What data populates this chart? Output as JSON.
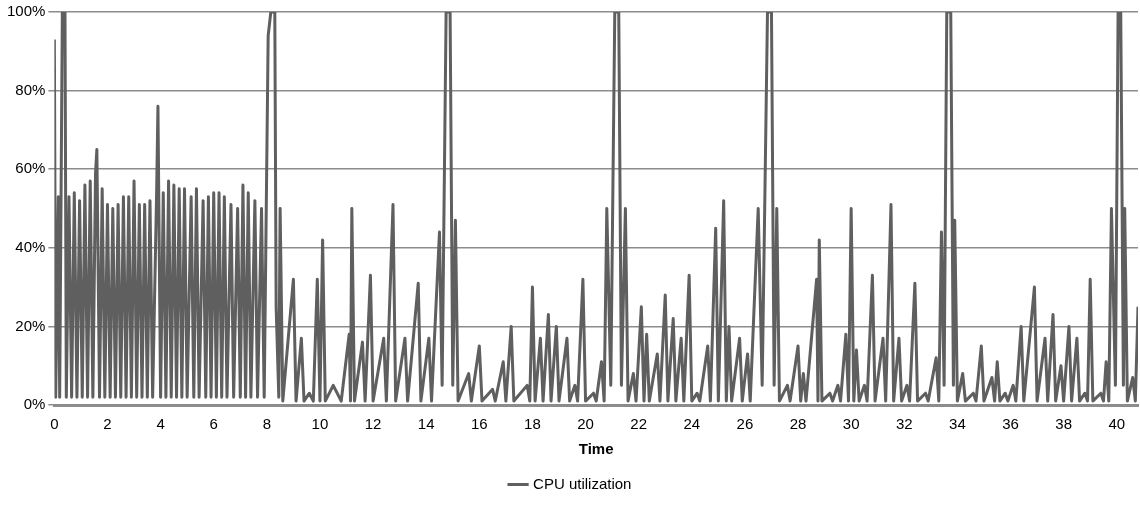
{
  "chart_data": {
    "type": "line",
    "xlabel": "Time",
    "xlim": [
      0,
      40.8
    ],
    "xticks": [
      0,
      2,
      4,
      6,
      8,
      10,
      12,
      14,
      16,
      18,
      20,
      22,
      24,
      26,
      28,
      30,
      32,
      34,
      36,
      38,
      40
    ],
    "ylim": [
      0,
      100
    ],
    "yticks": [
      {
        "value": 0,
        "label": "0%"
      },
      {
        "value": 20,
        "label": "20%"
      },
      {
        "value": 40,
        "label": "40%"
      },
      {
        "value": 60,
        "label": "60%"
      },
      {
        "value": 80,
        "label": "80%"
      },
      {
        "value": 100,
        "label": "100%"
      }
    ],
    "grid": "y",
    "legend": "bottom",
    "marker": "none",
    "line_style": "solid",
    "series": [
      {
        "name": "CPU utilization",
        "color": "#5f5f5f",
        "x": [
          0.0,
          0.05,
          0.15,
          0.2,
          0.3,
          0.4,
          0.45,
          0.55,
          0.65,
          0.75,
          0.85,
          0.95,
          1.05,
          1.15,
          1.25,
          1.35,
          1.45,
          1.55,
          1.6,
          1.7,
          1.8,
          1.9,
          2.0,
          2.1,
          2.2,
          2.3,
          2.4,
          2.5,
          2.6,
          2.7,
          2.8,
          2.9,
          3.0,
          3.1,
          3.2,
          3.3,
          3.4,
          3.5,
          3.6,
          3.7,
          3.85,
          3.9,
          4.0,
          4.1,
          4.2,
          4.3,
          4.4,
          4.5,
          4.6,
          4.7,
          4.8,
          4.9,
          5.0,
          5.15,
          5.25,
          5.35,
          5.45,
          5.6,
          5.7,
          5.8,
          5.9,
          6.0,
          6.1,
          6.2,
          6.3,
          6.4,
          6.5,
          6.65,
          6.75,
          6.9,
          7.0,
          7.1,
          7.2,
          7.3,
          7.4,
          7.55,
          7.65,
          7.8,
          7.9,
          8.05,
          8.15,
          8.3,
          8.35,
          8.45,
          8.5,
          8.6,
          9.0,
          9.1,
          9.3,
          9.4,
          9.6,
          9.75,
          9.9,
          10.0,
          10.1,
          10.2,
          10.5,
          10.8,
          11.1,
          11.15,
          11.2,
          11.3,
          11.6,
          11.7,
          11.9,
          12.0,
          12.4,
          12.5,
          12.75,
          12.85,
          13.2,
          13.3,
          13.7,
          13.8,
          14.1,
          14.2,
          14.5,
          14.6,
          14.75,
          14.9,
          15.0,
          15.1,
          15.2,
          15.6,
          15.7,
          16.0,
          16.1,
          16.5,
          16.6,
          16.9,
          17.0,
          17.2,
          17.3,
          17.8,
          17.9,
          18.0,
          18.1,
          18.3,
          18.4,
          18.6,
          18.7,
          18.9,
          19.0,
          19.3,
          19.4,
          19.6,
          19.7,
          19.9,
          20.0,
          20.3,
          20.4,
          20.6,
          20.7,
          20.8,
          20.95,
          21.1,
          21.25,
          21.35,
          21.5,
          21.6,
          21.8,
          21.9,
          22.1,
          22.2,
          22.3,
          22.4,
          22.7,
          22.8,
          23.0,
          23.1,
          23.3,
          23.4,
          23.6,
          23.7,
          23.9,
          24.0,
          24.2,
          24.3,
          24.6,
          24.7,
          24.9,
          25.0,
          25.2,
          25.3,
          25.4,
          25.5,
          25.8,
          25.9,
          26.1,
          26.2,
          26.5,
          26.65,
          26.85,
          27.0,
          27.1,
          27.2,
          27.3,
          27.6,
          27.7,
          28.0,
          28.1,
          28.2,
          28.3,
          28.7,
          28.75,
          28.8,
          28.9,
          29.2,
          29.3,
          29.5,
          29.6,
          29.8,
          29.9,
          30.0,
          30.1,
          30.2,
          30.3,
          30.5,
          30.6,
          30.8,
          30.9,
          31.2,
          31.3,
          31.5,
          31.6,
          31.8,
          31.9,
          32.1,
          32.2,
          32.4,
          32.5,
          32.8,
          32.9,
          33.2,
          33.3,
          33.4,
          33.5,
          33.6,
          33.75,
          33.85,
          33.9,
          34.0,
          34.2,
          34.3,
          34.6,
          34.7,
          34.9,
          35.0,
          35.3,
          35.4,
          35.5,
          35.6,
          35.8,
          35.9,
          36.1,
          36.2,
          36.4,
          36.5,
          36.9,
          37.0,
          37.3,
          37.4,
          37.6,
          37.7,
          37.9,
          38.0,
          38.2,
          38.3,
          38.5,
          38.6,
          38.8,
          38.9,
          39.0,
          39.1,
          39.4,
          39.5,
          39.6,
          39.7,
          39.8,
          39.95,
          40.05,
          40.15,
          40.25,
          40.3,
          40.4,
          40.6,
          40.7,
          40.8
        ],
        "values": [
          93,
          2,
          53,
          2,
          100,
          100,
          2,
          53,
          2,
          54,
          2,
          52,
          2,
          56,
          2,
          57,
          2,
          59,
          65,
          2,
          55,
          2,
          51,
          2,
          50,
          2,
          51,
          2,
          53,
          2,
          53,
          2,
          57,
          2,
          51,
          2,
          51,
          2,
          52,
          2,
          54,
          76,
          2,
          54,
          2,
          57,
          2,
          56,
          2,
          55,
          2,
          55,
          2,
          53,
          2,
          55,
          2,
          52,
          2,
          53,
          2,
          54,
          2,
          54,
          2,
          53,
          2,
          51,
          2,
          50,
          2,
          56,
          2,
          54,
          2,
          52,
          2,
          50,
          2,
          94,
          100,
          100,
          25,
          2,
          50,
          1,
          32,
          1,
          17,
          1,
          3,
          1,
          32,
          1,
          42,
          1,
          5,
          1,
          18,
          1,
          50,
          1,
          16,
          1,
          33,
          1,
          17,
          1,
          51,
          1,
          17,
          1,
          31,
          1,
          17,
          1,
          44,
          5,
          100,
          100,
          5,
          47,
          1,
          8,
          1,
          15,
          1,
          4,
          1,
          11,
          1,
          20,
          1,
          5,
          1,
          30,
          1,
          17,
          1,
          23,
          1,
          20,
          1,
          17,
          1,
          5,
          1,
          32,
          1,
          3,
          1,
          11,
          1,
          50,
          5,
          100,
          100,
          5,
          50,
          1,
          8,
          1,
          25,
          1,
          18,
          1,
          13,
          1,
          28,
          1,
          22,
          1,
          17,
          1,
          33,
          1,
          3,
          1,
          15,
          1,
          45,
          1,
          52,
          1,
          20,
          1,
          17,
          1,
          13,
          1,
          50,
          5,
          100,
          100,
          5,
          50,
          1,
          5,
          1,
          15,
          1,
          8,
          1,
          32,
          1,
          42,
          1,
          3,
          1,
          5,
          1,
          18,
          1,
          50,
          1,
          14,
          1,
          5,
          1,
          33,
          1,
          17,
          1,
          51,
          1,
          17,
          1,
          5,
          1,
          31,
          1,
          3,
          1,
          12,
          1,
          44,
          5,
          100,
          100,
          5,
          47,
          1,
          8,
          1,
          3,
          1,
          15,
          1,
          7,
          1,
          11,
          1,
          3,
          1,
          5,
          1,
          20,
          1,
          30,
          1,
          17,
          1,
          23,
          1,
          10,
          1,
          20,
          1,
          17,
          1,
          3,
          1,
          32,
          1,
          3,
          1,
          11,
          1,
          50,
          5,
          100,
          100,
          5,
          50,
          1,
          7,
          1,
          25
        ]
      }
    ]
  }
}
